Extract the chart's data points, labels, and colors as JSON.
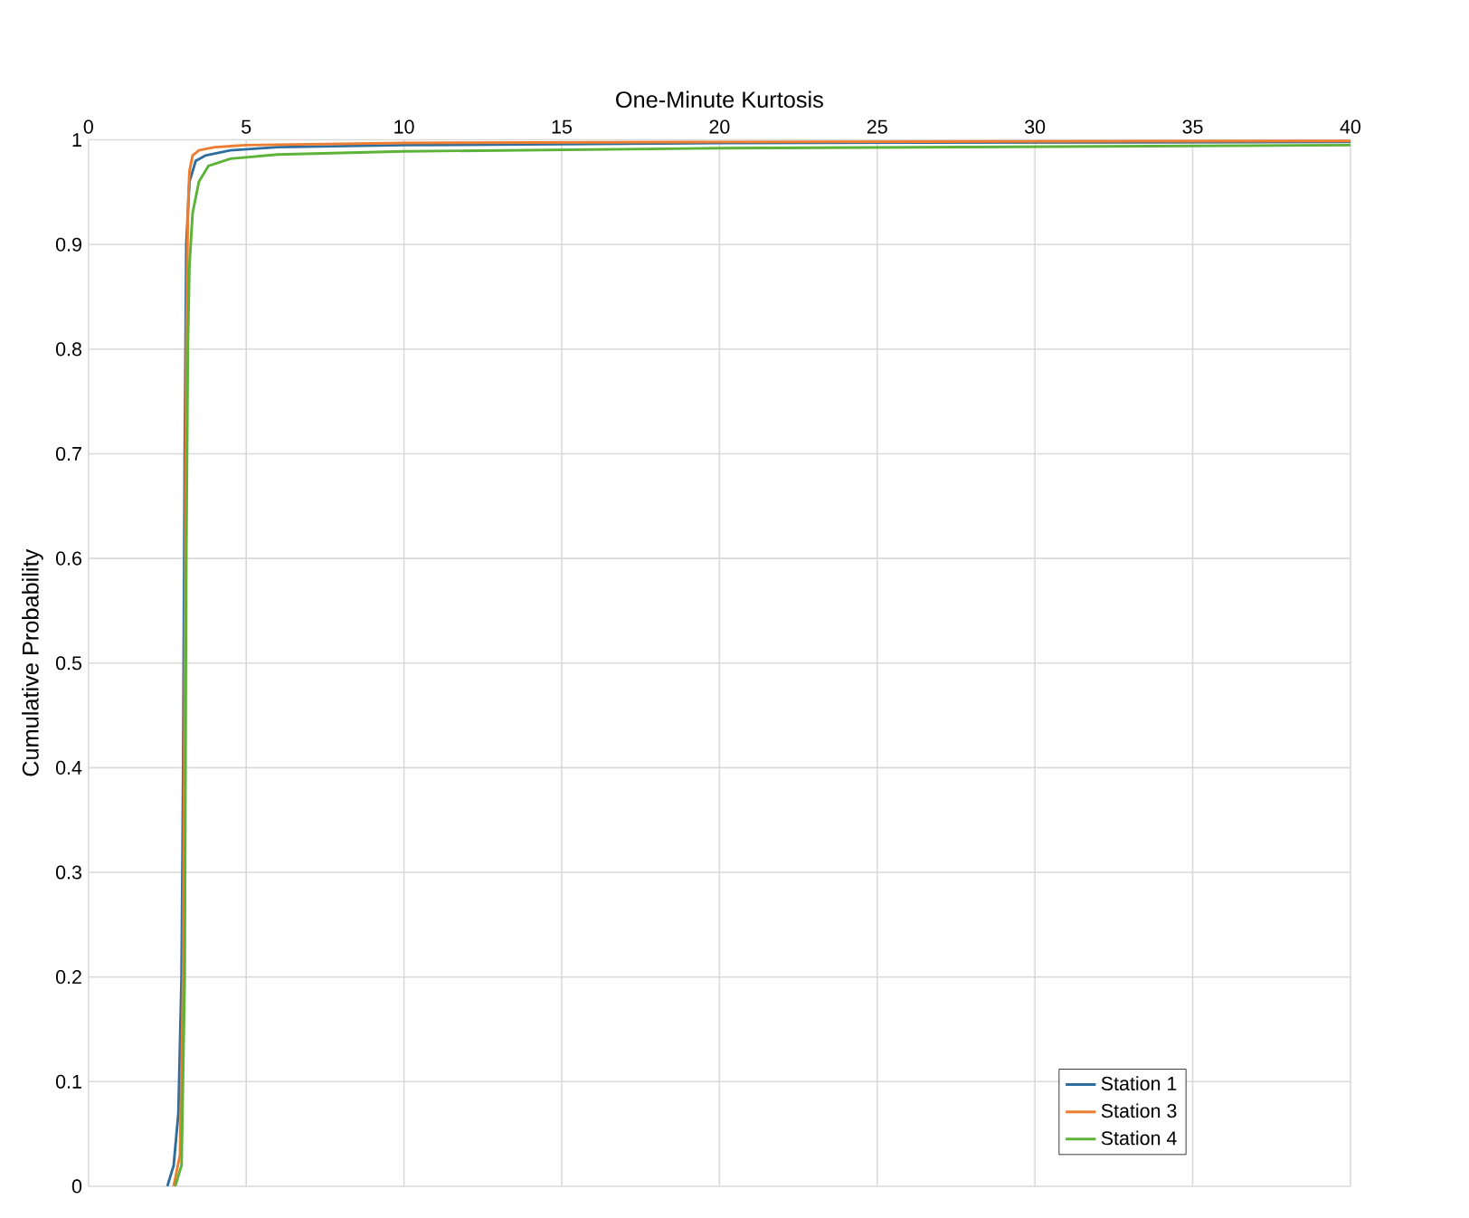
{
  "chart_data": {
    "type": "line",
    "xlabel": "One-Minute Kurtosis",
    "ylabel": "Cumulative Probability",
    "xlim": [
      0,
      40
    ],
    "ylim": [
      0,
      1
    ],
    "xticks": [
      0,
      5,
      10,
      15,
      20,
      25,
      30,
      35,
      40
    ],
    "yticks": [
      0,
      0.1,
      0.2,
      0.3,
      0.4,
      0.5,
      0.6,
      0.7,
      0.8,
      0.9,
      1
    ],
    "grid": true,
    "legend": "bottom right",
    "marker": "none",
    "line_style": "solid",
    "series": [
      {
        "name": "Station 1",
        "color": "#2e6e9e",
        "x": [
          2.5,
          2.7,
          2.85,
          2.95,
          3.0,
          3.05,
          3.1,
          3.2,
          3.4,
          3.7,
          4.5,
          6,
          10,
          20,
          40
        ],
        "values": [
          0,
          0.02,
          0.07,
          0.2,
          0.4,
          0.7,
          0.9,
          0.96,
          0.98,
          0.985,
          0.99,
          0.993,
          0.995,
          0.997,
          0.998
        ]
      },
      {
        "name": "Station 3",
        "color": "#ed7d31",
        "x": [
          2.7,
          2.9,
          3.0,
          3.05,
          3.1,
          3.15,
          3.2,
          3.3,
          3.5,
          4,
          5,
          10,
          20,
          40
        ],
        "values": [
          0,
          0.03,
          0.2,
          0.5,
          0.8,
          0.93,
          0.97,
          0.985,
          0.99,
          0.993,
          0.995,
          0.997,
          0.998,
          0.999
        ]
      },
      {
        "name": "Station 4",
        "color": "#5cb338",
        "x": [
          2.75,
          2.95,
          3.05,
          3.1,
          3.15,
          3.2,
          3.3,
          3.5,
          3.8,
          4.5,
          6,
          10,
          20,
          40
        ],
        "values": [
          0,
          0.02,
          0.2,
          0.6,
          0.8,
          0.88,
          0.93,
          0.96,
          0.975,
          0.982,
          0.986,
          0.989,
          0.992,
          0.995
        ]
      }
    ]
  }
}
